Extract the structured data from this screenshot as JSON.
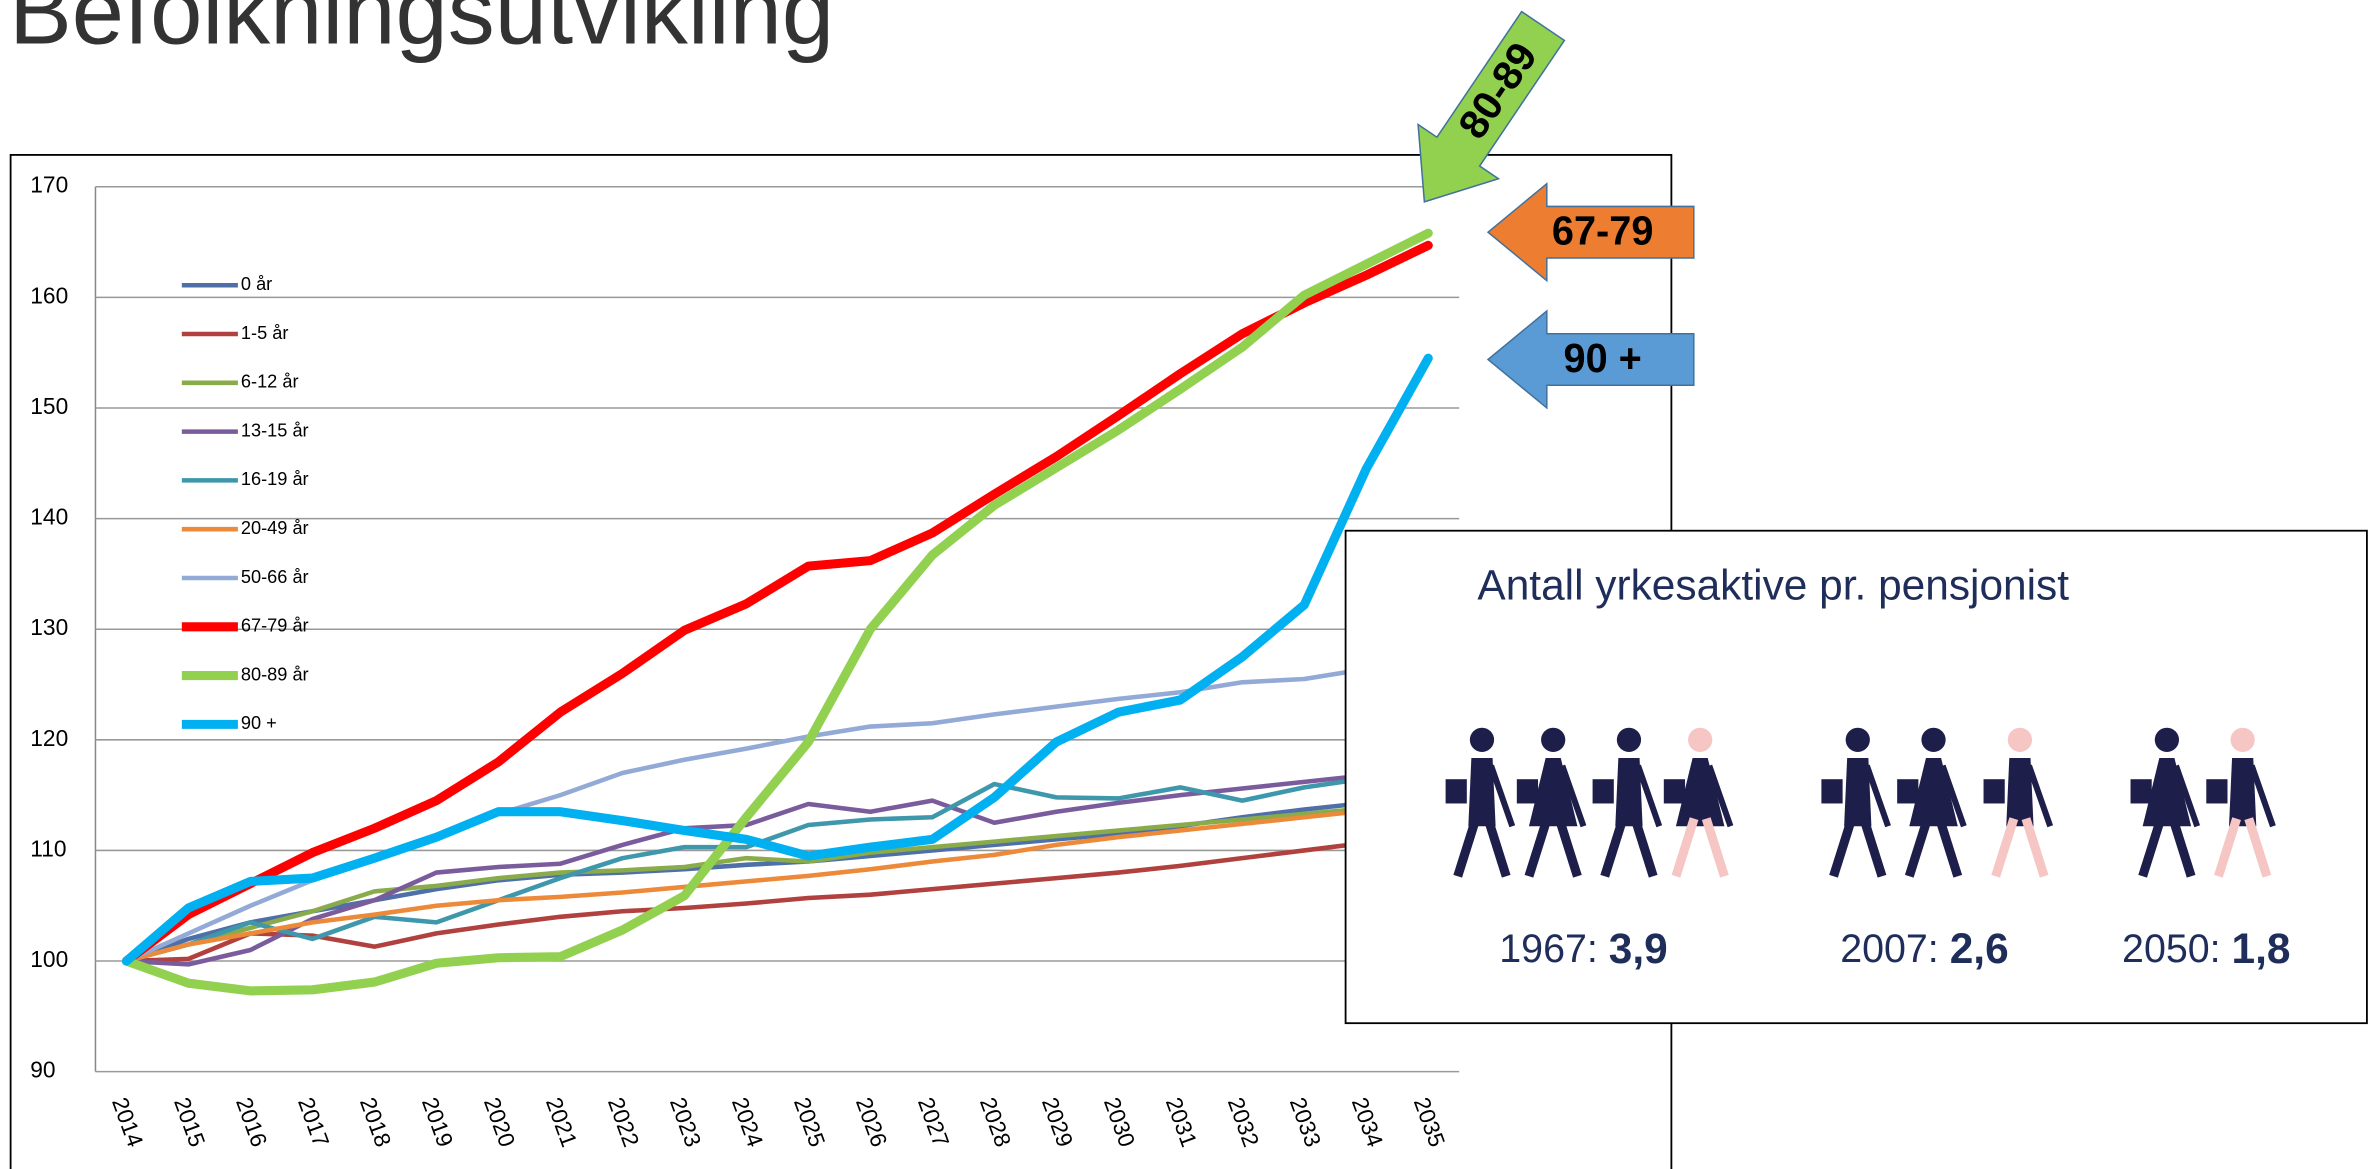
{
  "title": "Befolkningsutvikling",
  "chart_data": {
    "type": "line",
    "categories": [
      "2014",
      "2015",
      "2016",
      "2017",
      "2018",
      "2019",
      "2020",
      "2021",
      "2022",
      "2023",
      "2024",
      "2025",
      "2026",
      "2027",
      "2028",
      "2029",
      "2030",
      "2031",
      "2032",
      "2033",
      "2034",
      "2035"
    ],
    "ylim": [
      90,
      170
    ],
    "yticks": [
      90,
      100,
      110,
      120,
      130,
      140,
      150,
      160,
      170
    ],
    "grid": true,
    "series": [
      {
        "name": "0 år",
        "color": "#4f6fa8",
        "line_width": 3,
        "values": [
          100,
          102,
          103.5,
          104.5,
          105.5,
          106.5,
          107.3,
          107.8,
          108,
          108.3,
          108.7,
          109,
          109.5,
          110,
          110.5,
          111,
          111.5,
          112.2,
          113,
          113.7,
          114.3,
          115
        ]
      },
      {
        "name": "1-5 år",
        "color": "#b0413e",
        "line_width": 3,
        "values": [
          100,
          100.2,
          102.5,
          102.3,
          101.3,
          102.5,
          103.3,
          104,
          104.5,
          104.8,
          105.2,
          105.7,
          106,
          106.5,
          107,
          107.5,
          108,
          108.6,
          109.3,
          110,
          110.7,
          111.3
        ]
      },
      {
        "name": "6-12 år",
        "color": "#8aab4a",
        "line_width": 3,
        "values": [
          100,
          101.5,
          103,
          104.5,
          106.3,
          106.8,
          107.5,
          108,
          108.2,
          108.5,
          109.3,
          109,
          109.8,
          110.3,
          110.8,
          111.3,
          111.8,
          112.3,
          112.8,
          113.3,
          113.8,
          114.3
        ]
      },
      {
        "name": "13-15 år",
        "color": "#7a5c9c",
        "line_width": 3,
        "values": [
          100,
          99.7,
          101,
          103.8,
          105.5,
          108,
          108.5,
          108.8,
          110.5,
          112,
          112.3,
          114.2,
          113.5,
          114.5,
          112.5,
          113.5,
          114.3,
          115,
          115.6,
          116.2,
          116.8,
          117.3
        ]
      },
      {
        "name": "16-19 år",
        "color": "#3f97ab",
        "line_width": 3,
        "values": [
          100,
          101.5,
          103.5,
          102,
          104,
          103.5,
          105.5,
          107.5,
          109.3,
          110.3,
          110.3,
          112.3,
          112.8,
          113,
          116,
          114.8,
          114.7,
          115.7,
          114.5,
          115.7,
          116.5,
          117
        ]
      },
      {
        "name": "20-49 år",
        "color": "#ec8a3a",
        "line_width": 3,
        "values": [
          100,
          101.5,
          102.5,
          103.5,
          104.2,
          105,
          105.5,
          105.8,
          106.2,
          106.7,
          107.2,
          107.7,
          108.3,
          109,
          109.6,
          110.5,
          111.2,
          111.8,
          112.4,
          113,
          113.6,
          114.2
        ]
      },
      {
        "name": "50-66 år",
        "color": "#93a9d6",
        "line_width": 3,
        "values": [
          100,
          102.5,
          105,
          107.3,
          109.3,
          111.3,
          113.3,
          115,
          117,
          118.2,
          119.2,
          120.3,
          121.2,
          121.5,
          122.3,
          123,
          123.7,
          124.3,
          125.2,
          125.5,
          126.4,
          127.3
        ]
      },
      {
        "name": "67-79 år",
        "color": "#ff0000",
        "line_width": 6,
        "values": [
          100,
          104.2,
          107,
          109.8,
          112,
          114.5,
          118,
          122.5,
          126,
          129.9,
          132.3,
          135.7,
          136.2,
          138.7,
          142.2,
          145.6,
          149.3,
          153.1,
          156.7,
          159.5,
          162,
          164.7
        ]
      },
      {
        "name": "80-89 år",
        "color": "#92d050",
        "line_width": 6,
        "values": [
          100,
          98,
          97.3,
          97.4,
          98.1,
          99.8,
          100.3,
          100.4,
          102.8,
          105.9,
          113,
          119.8,
          130,
          136.7,
          141.2,
          144.6,
          148,
          151.7,
          155.5,
          160.2,
          163,
          165.8
        ]
      },
      {
        "name": "90 +",
        "color": "#00b0f0",
        "line_width": 6,
        "values": [
          100,
          104.8,
          107.2,
          107.5,
          109.3,
          111.2,
          113.5,
          113.5,
          112.7,
          111.8,
          111,
          109.5,
          110.3,
          111,
          114.8,
          119.8,
          122.5,
          123.6,
          127.5,
          132.2,
          144.5,
          154.5
        ]
      }
    ]
  },
  "arrows": [
    {
      "label": "80-89",
      "color": "#92d050"
    },
    {
      "label": "67-79",
      "color": "#ed7d31"
    },
    {
      "label": "90 +",
      "color": "#5b9bd5"
    }
  ],
  "inset": {
    "title": "Antall yrkesaktive pr. pensjonist",
    "groups": [
      {
        "year": "1967:",
        "value": "3,9"
      },
      {
        "year": "2007:",
        "value": "2,6"
      },
      {
        "year": "2050:",
        "value": "1,8"
      }
    ]
  }
}
